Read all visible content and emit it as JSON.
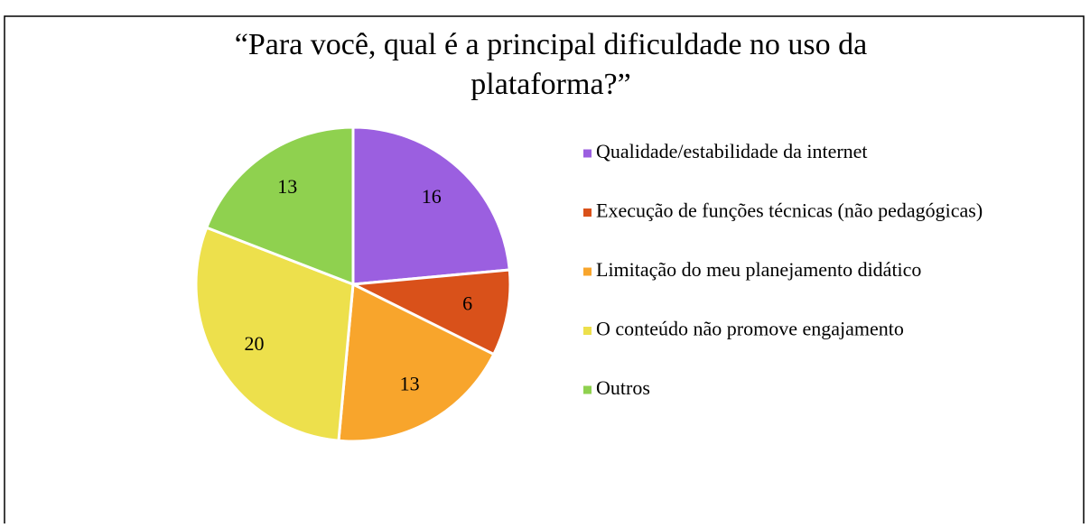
{
  "chart_data": {
    "type": "pie",
    "title": [
      "“Para você, qual é a principal dificuldade no uso da",
      "plataforma?”"
    ],
    "categories": [
      "Qualidade/estabilidade da internet",
      "Execução de funções técnicas (não pedagógicas)",
      "Limitação do meu planejamento didático",
      "O conteúdo não promove engajamento",
      "Outros"
    ],
    "values": [
      16,
      6,
      13,
      20,
      13
    ],
    "colors": [
      "#9b5fe0",
      "#d9511a",
      "#f8a52c",
      "#ede04c",
      "#8fd14f"
    ],
    "legend": "right"
  }
}
